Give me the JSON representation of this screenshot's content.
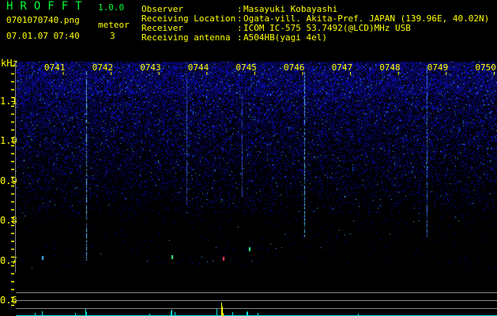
{
  "header": {
    "app_title": "HROFFT",
    "version": "1.0.0",
    "filename": "0701070740.png",
    "datetime": "07.01.07 07:40",
    "meteor_label": "meteor",
    "meteor_count": "3",
    "info": [
      {
        "label": "Observer",
        "sep": ":",
        "value": "Masayuki Kobayashi"
      },
      {
        "label": "Receiving Location",
        "sep": ":",
        "value": "Ogata-vill. Akita-Pref. JAPAN (139.96E, 40.02N)"
      },
      {
        "label": "Receiver",
        "sep": ":",
        "value": "ICOM IC-575 53.7492(@LCD)MHz USB"
      },
      {
        "label": "Receiving antenna",
        "sep": ":",
        "value": "A504HB(yagi 4el)"
      }
    ]
  },
  "chart_data": {
    "type": "heatmap",
    "ylabel": "kHz",
    "x_tick_labels": [
      "0741",
      "0742",
      "0743",
      "0744",
      "0745",
      "0746",
      "0747",
      "0748",
      "0749",
      "0750"
    ],
    "y_tick_labels": [
      "1.1",
      "1.0",
      "0.9",
      "0.8",
      "0.7",
      "0.6"
    ],
    "y_ticks": [
      1.1,
      1.0,
      0.9,
      0.8,
      0.7,
      0.6
    ],
    "ylim": [
      0.58,
      1.2
    ],
    "colors": {
      "noise": "#1a1aff",
      "axis_text": "#ffff00",
      "title": "#00ff33",
      "histogram": "#00e5e5",
      "grid": "#888888"
    }
  }
}
